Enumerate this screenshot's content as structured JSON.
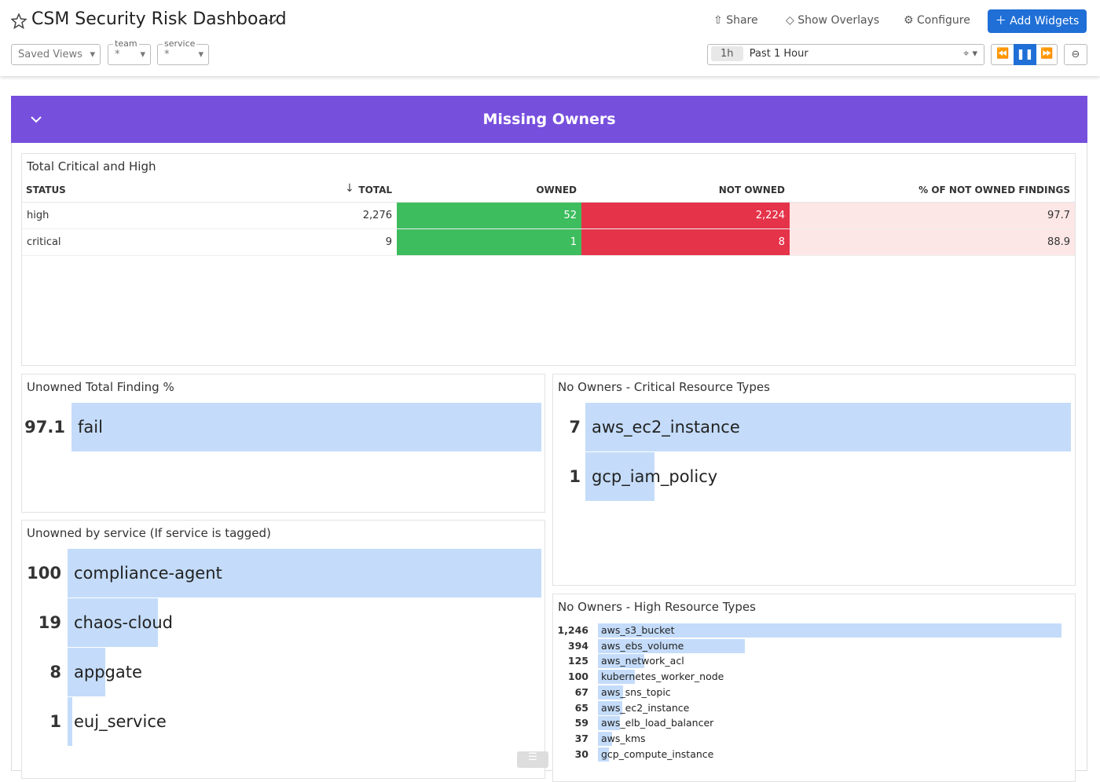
{
  "header": {
    "title": "CSM Security Risk Dashboard",
    "share": "Share",
    "overlays": "Show Overlays",
    "configure": "Configure",
    "add_widgets": "Add Widgets"
  },
  "filters": {
    "saved_views": "Saved Views",
    "team": {
      "label": "team",
      "value": "*"
    },
    "service": {
      "label": "service",
      "value": "*"
    }
  },
  "time": {
    "short": "1h",
    "label": "Past 1 Hour"
  },
  "group": {
    "title": "Missing Owners"
  },
  "table": {
    "title": "Total Critical and High",
    "columns": [
      "STATUS",
      "TOTAL",
      "OWNED",
      "NOT OWNED",
      "% OF NOT OWNED FINDINGS"
    ],
    "rows": [
      [
        "high",
        "2,276",
        "52",
        "2,224",
        "97.7"
      ],
      [
        "critical",
        "9",
        "1",
        "8",
        "88.9"
      ]
    ]
  },
  "toplists": [
    {
      "title": "Unowned Total Finding %",
      "categories": [
        "fail"
      ],
      "values": [
        97.1
      ]
    },
    {
      "title": "No Owners - Critical Resource Types",
      "categories": [
        "aws_ec2_instance",
        "gcp_iam_policy"
      ],
      "values": [
        7,
        1
      ]
    },
    {
      "title": "Unowned by service (If service is tagged)",
      "categories": [
        "compliance-agent",
        "chaos-cloud",
        "appgate",
        "euj_service"
      ],
      "values": [
        100,
        19,
        8,
        1
      ]
    },
    {
      "title": "No Owners - High Resource Types",
      "categories": [
        "aws_s3_bucket",
        "aws_ebs_volume",
        "aws_network_acl",
        "kubernetes_worker_node",
        "aws_sns_topic",
        "aws_ec2_instance",
        "aws_elb_load_balancer",
        "aws_kms",
        "gcp_compute_instance"
      ],
      "values": [
        1246,
        394,
        125,
        100,
        67,
        65,
        59,
        37,
        30
      ],
      "value_labels": [
        "1,246",
        "394",
        "125",
        "100",
        "67",
        "65",
        "59",
        "37",
        "30"
      ]
    }
  ]
}
